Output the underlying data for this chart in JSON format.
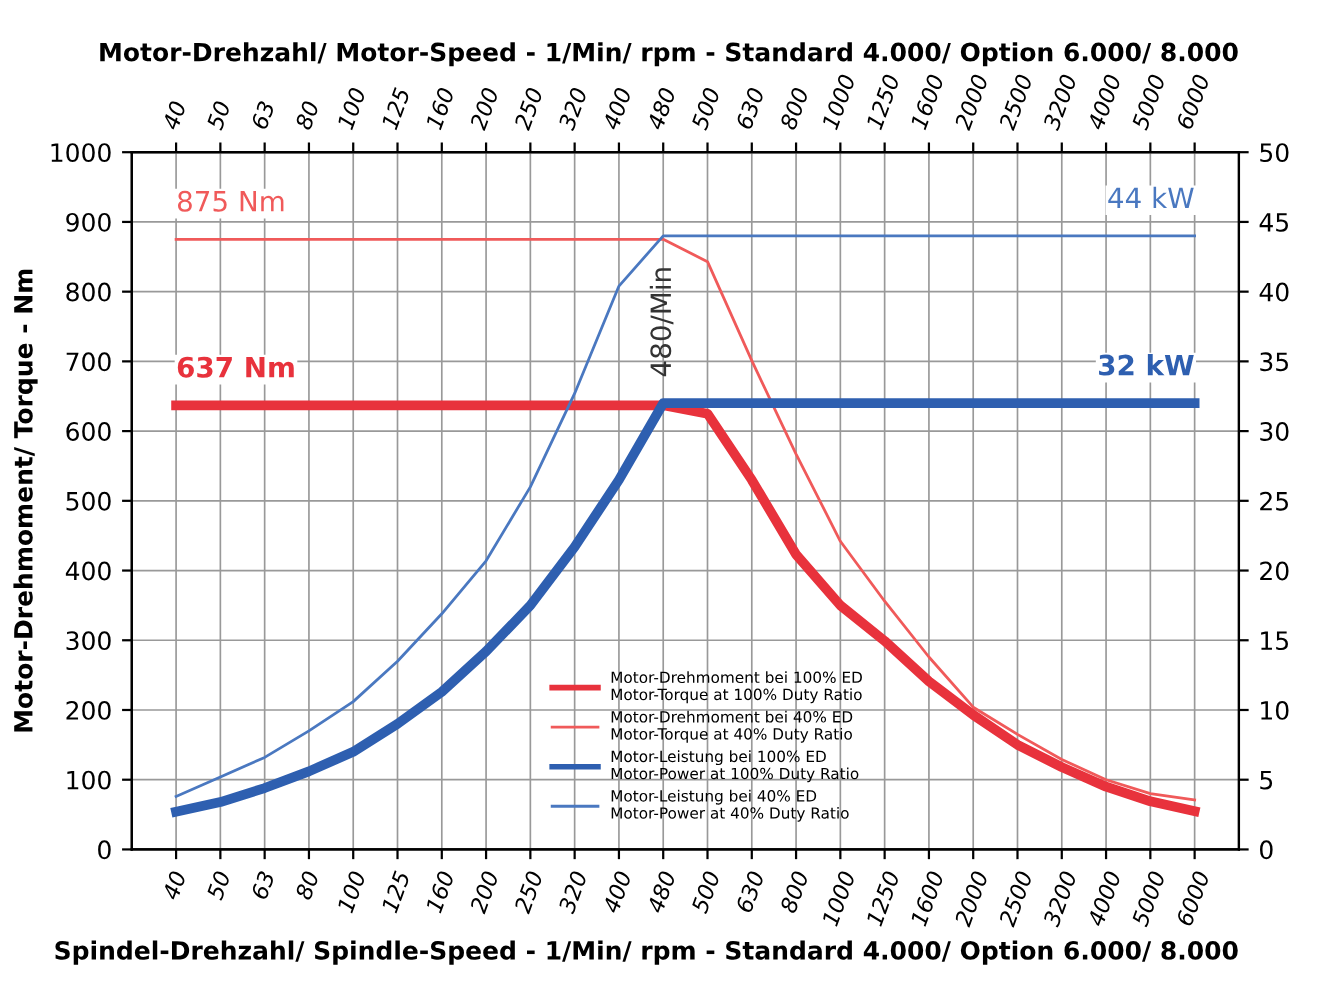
{
  "chart_data": {
    "type": "line",
    "xlabel": "Spindel-Drehzahl/ Spindle-Speed - 1/Min/ rpm - Standard 4.000/ Option 6.000/ 8.000",
    "x2label": "Motor-Drehzahl/ Motor-Speed - 1/Min/ rpm - Standard 4.000/ Option 6.000/ 8.000",
    "ylabel": "Motor-Drehmoment/ Torque - Nm",
    "categories": [
      "40",
      "50",
      "63",
      "80",
      "100",
      "125",
      "160",
      "200",
      "250",
      "320",
      "400",
      "480",
      "500",
      "630",
      "800",
      "1000",
      "1250",
      "1600",
      "2000",
      "2500",
      "3200",
      "4000",
      "5000",
      "6000"
    ],
    "series": [
      {
        "name": "Motor-Drehmoment bei 100% ED\nMotor-Torque at 100% Duty Ratio",
        "color": "#e8323c",
        "values": [
          637,
          637,
          637,
          637,
          637,
          637,
          637,
          637,
          637,
          637,
          637,
          637,
          625,
          530,
          423,
          350,
          299,
          241,
          193,
          150,
          118,
          90,
          69,
          55
        ]
      },
      {
        "name": "Motor-Drehmoment bei 40% ED\nMotor-Torque at 40% Duty Ratio",
        "color": "#f05a5a",
        "values": [
          875,
          875,
          875,
          875,
          875,
          875,
          875,
          875,
          875,
          875,
          875,
          875,
          843,
          701,
          567,
          442,
          356,
          276,
          204,
          165,
          129,
          100,
          80,
          71
        ]
      },
      {
        "name": "Motor-Leistung bei 100% ED\nMotor-Power at 100% Duty Ratio",
        "color": "#2e5fb0",
        "axis": "y2",
        "values": [
          2.7,
          3.4,
          4.4,
          5.6,
          7.0,
          9.0,
          11.3,
          14.2,
          17.5,
          21.7,
          26.5,
          32,
          32,
          32,
          32,
          32,
          32,
          32,
          32,
          32,
          32,
          32,
          32,
          32
        ]
      },
      {
        "name": "Motor-Leistung bei 40% ED\nMotor-Power at 40% Duty Ratio",
        "color": "#4a78c0",
        "axis": "y2",
        "values": [
          3.8,
          5.2,
          6.6,
          8.5,
          10.6,
          13.5,
          16.9,
          20.7,
          26,
          32.7,
          40.4,
          44,
          44,
          44,
          44,
          44,
          44,
          44,
          44,
          44,
          44,
          44,
          44,
          44
        ]
      }
    ],
    "ylim": [
      0,
      1000
    ],
    "yticks": [
      0,
      100,
      200,
      300,
      400,
      500,
      600,
      700,
      800,
      900,
      1000
    ],
    "y2lim": [
      0,
      50
    ],
    "y2ticks": [
      0,
      5,
      10,
      15,
      20,
      25,
      30,
      35,
      40,
      45,
      50
    ],
    "annotations": [
      {
        "text": "637 Nm",
        "x": "40",
        "y": 637
      },
      {
        "text": "875 Nm",
        "x": "40",
        "y": 875
      },
      "32 kW",
      "44 kW",
      {
        "text": "480/Min",
        "x": "480",
        "y": 637
      }
    ],
    "grid": true,
    "legend": "bottom",
    "marker": "none",
    "line_style": "solid"
  }
}
